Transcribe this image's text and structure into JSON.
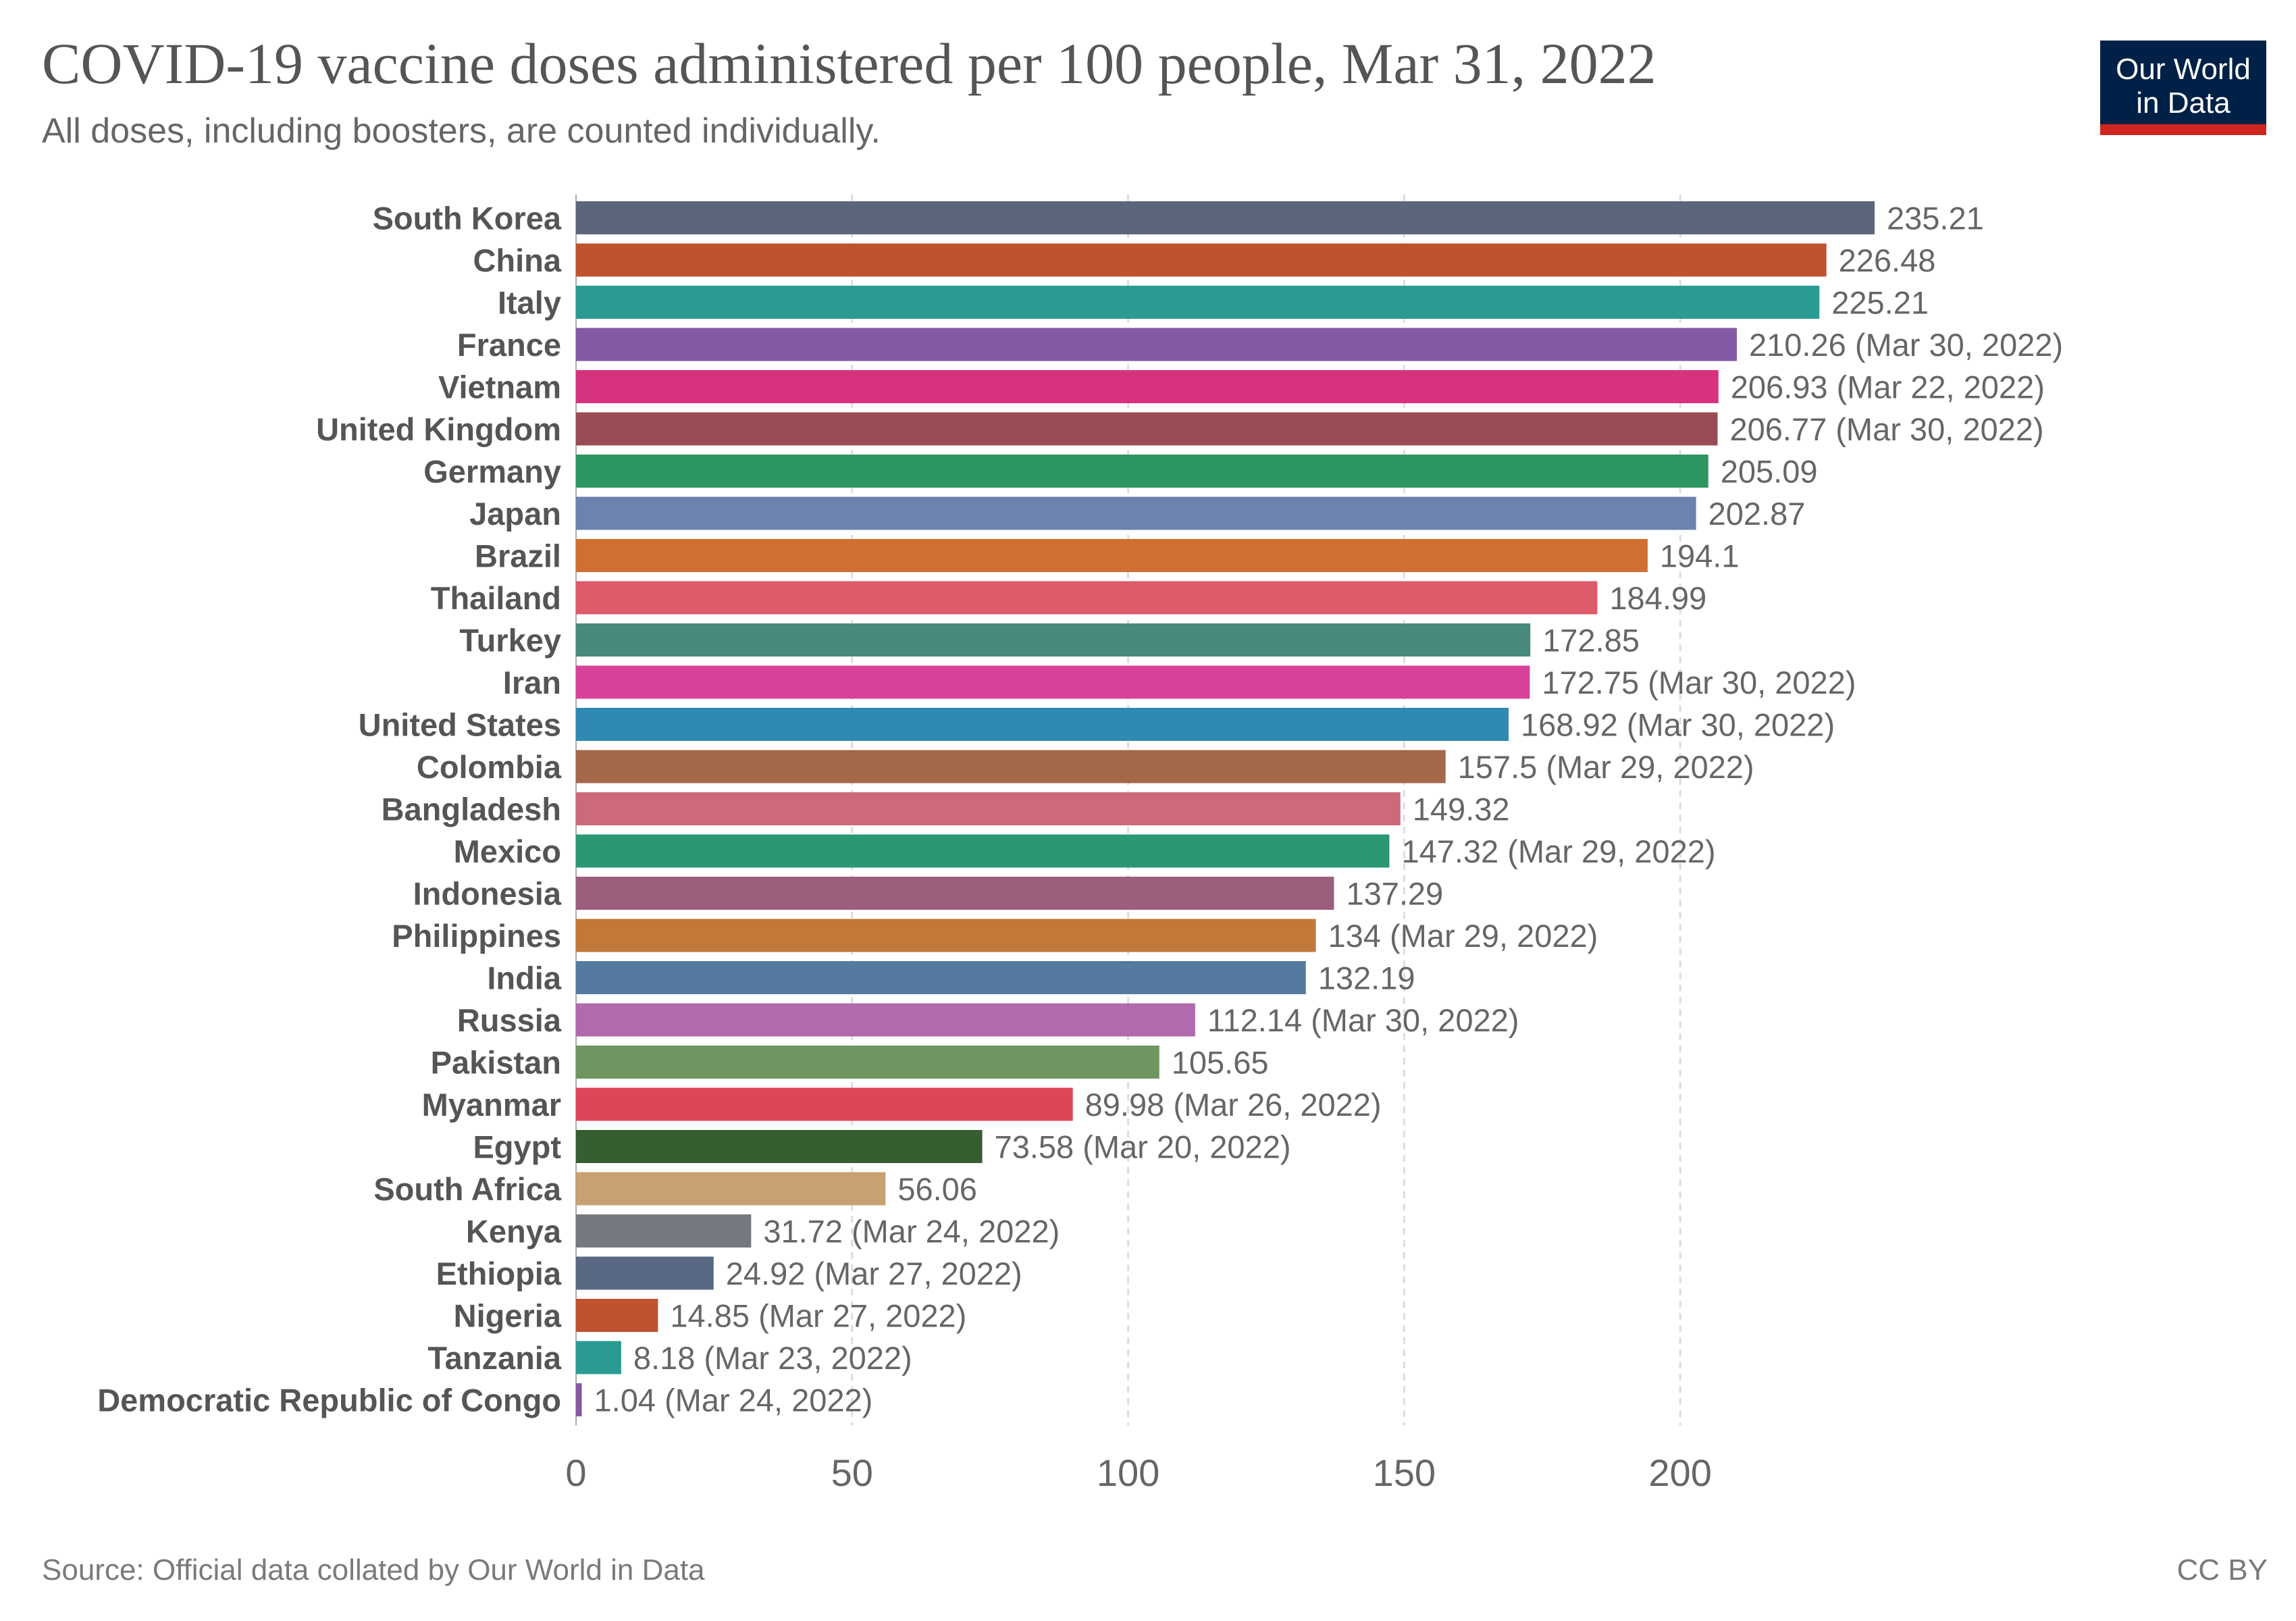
{
  "header": {
    "title": "COVID-19 vaccine doses administered per 100 people, Mar 31, 2022",
    "subtitle": "All doses, including boosters, are counted individually."
  },
  "logo": {
    "line1": "Our World",
    "line2": "in Data"
  },
  "footer": {
    "source": "Source: Official data collated by Our World in Data",
    "license": "CC BY"
  },
  "chart_data": {
    "type": "bar",
    "orientation": "horizontal",
    "title": "COVID-19 vaccine doses administered per 100 people, Mar 31, 2022",
    "xlabel": "",
    "ylabel": "",
    "xlim": [
      0,
      235.21
    ],
    "ticks": [
      0,
      50,
      100,
      150,
      200
    ],
    "grid": true,
    "categories": [
      "South Korea",
      "China",
      "Italy",
      "France",
      "Vietnam",
      "United Kingdom",
      "Germany",
      "Japan",
      "Brazil",
      "Thailand",
      "Turkey",
      "Iran",
      "United States",
      "Colombia",
      "Bangladesh",
      "Mexico",
      "Indonesia",
      "Philippines",
      "India",
      "Russia",
      "Pakistan",
      "Myanmar",
      "Egypt",
      "South Africa",
      "Kenya",
      "Ethiopia",
      "Nigeria",
      "Tanzania",
      "Democratic Republic of Congo"
    ],
    "values": [
      235.21,
      226.48,
      225.21,
      210.26,
      206.93,
      206.77,
      205.09,
      202.87,
      194.1,
      184.99,
      172.85,
      172.75,
      168.92,
      157.5,
      149.32,
      147.32,
      137.29,
      134,
      132.19,
      112.14,
      105.65,
      89.98,
      73.58,
      56.06,
      31.72,
      24.92,
      14.85,
      8.18,
      1.04
    ],
    "labels": [
      "235.21",
      "226.48",
      "225.21",
      "210.26 (Mar 30, 2022)",
      "206.93 (Mar 22, 2022)",
      "206.77 (Mar 30, 2022)",
      "205.09",
      "202.87",
      "194.1",
      "184.99",
      "172.85",
      "172.75 (Mar 30, 2022)",
      "168.92 (Mar 30, 2022)",
      "157.5 (Mar 29, 2022)",
      "149.32",
      "147.32 (Mar 29, 2022)",
      "137.29",
      "134 (Mar 29, 2022)",
      "132.19",
      "112.14 (Mar 30, 2022)",
      "105.65",
      "89.98 (Mar 26, 2022)",
      "73.58 (Mar 20, 2022)",
      "56.06",
      "31.72 (Mar 24, 2022)",
      "24.92 (Mar 27, 2022)",
      "14.85 (Mar 27, 2022)",
      "8.18 (Mar 23, 2022)",
      "1.04 (Mar 24, 2022)"
    ],
    "colors": [
      "#5b667d",
      "#c0522e",
      "#2a9b93",
      "#8459a3",
      "#d6327e",
      "#9a4b55",
      "#2c9661",
      "#6b83ad",
      "#cf7032",
      "#de5b6b",
      "#478a7c",
      "#d7419a",
      "#2f89b2",
      "#a4684a",
      "#cc6a7a",
      "#2a9872",
      "#9c5e7d",
      "#c17838",
      "#557aa0",
      "#b06aad",
      "#6f9561",
      "#df4559",
      "#365e30",
      "#c8a072",
      "#75787f",
      "#596883",
      "#c0522e",
      "#2a9b93",
      "#8459a3"
    ]
  }
}
